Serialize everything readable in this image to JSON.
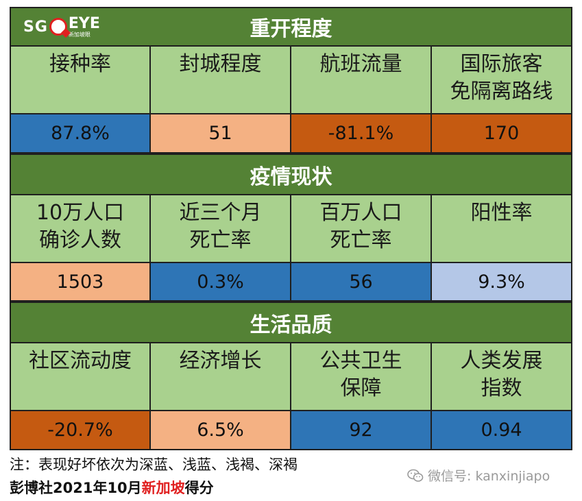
{
  "logo": {
    "sg": "SG",
    "eye": "EYE",
    "sub": "新加坡眼"
  },
  "sections": [
    {
      "title": "重开程度",
      "cells": [
        {
          "label": [
            "接种率"
          ],
          "value": "87.8%",
          "rating": "deepblue"
        },
        {
          "label": [
            "封城程度"
          ],
          "value": "51",
          "rating": "lightbrown"
        },
        {
          "label": [
            "航班流量"
          ],
          "value": "-81.1%",
          "rating": "deepbrown"
        },
        {
          "label": [
            "国际旅客",
            "免隔离路线"
          ],
          "value": "170",
          "rating": "deepbrown"
        }
      ]
    },
    {
      "title": "疫情现状",
      "cells": [
        {
          "label": [
            "10万人口",
            "确诊人数"
          ],
          "value": "1503",
          "rating": "lightbrown"
        },
        {
          "label": [
            "近三个月",
            "死亡率"
          ],
          "value": "0.3%",
          "rating": "deepblue"
        },
        {
          "label": [
            "百万人口",
            "死亡率"
          ],
          "value": "56",
          "rating": "deepblue"
        },
        {
          "label": [
            "阳性率"
          ],
          "value": "9.3%",
          "rating": "lightblue"
        }
      ]
    },
    {
      "title": "生活品质",
      "cells": [
        {
          "label": [
            "社区流动度"
          ],
          "value": "-20.7%",
          "rating": "deepbrown"
        },
        {
          "label": [
            "经济增长"
          ],
          "value": "6.5%",
          "rating": "lightbrown"
        },
        {
          "label": [
            "公共卫生",
            "保障"
          ],
          "value": "92",
          "rating": "deepblue"
        },
        {
          "label": [
            "人类发展",
            "指数"
          ],
          "value": "0.94",
          "rating": "deepblue"
        }
      ]
    }
  ],
  "colors": {
    "deepblue": "#2e75b6",
    "lightblue": "#b4c7e7",
    "lightbrown": "#f4b183",
    "deepbrown": "#c55a11",
    "header": "#548235",
    "label": "#a9d18e"
  },
  "footer": {
    "note": "注：表现好坏依次为深蓝、浅蓝、浅褐、深褐",
    "source_prefix": "彭博社2021年10月",
    "source_highlight": "新加坡",
    "source_suffix": "得分",
    "wechat": "微信号: kanxinjiapo"
  }
}
